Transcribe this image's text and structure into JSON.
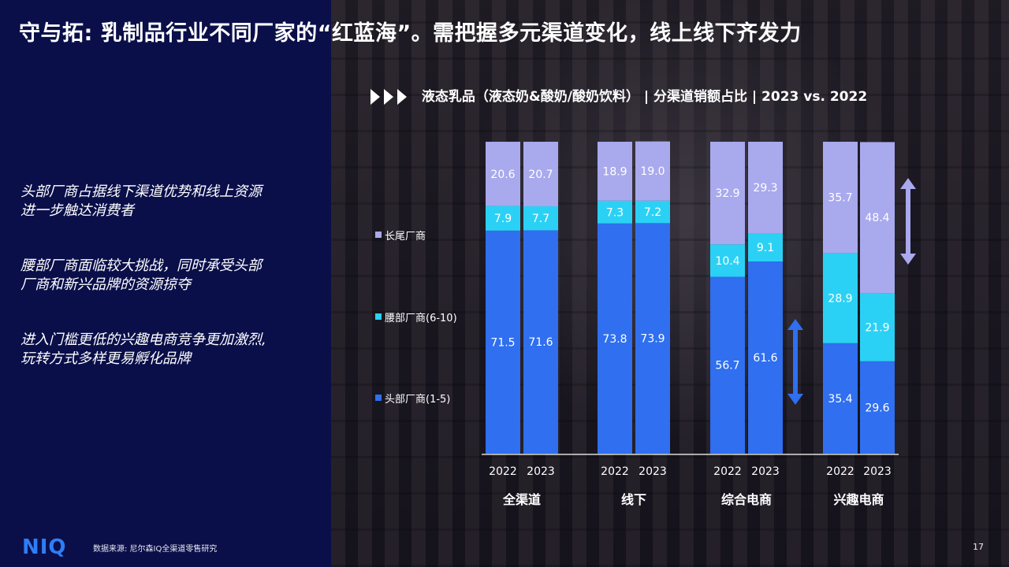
{
  "slide": {
    "title": "守与拓: 乳制品行业不同厂家的“红蓝海”。需把握多元渠道变化，线上线下齐发力",
    "points": [
      "头部厂商占据线下渠道优势和线上资源\n进一步触达消费者",
      "腰部厂商面临较大挑战，同时承受头部\n厂商和新兴品牌的资源掠夺",
      "进入门槛更低的兴趣电商竞争更加激烈,\n玩转方式多样更易孵化品牌"
    ],
    "logo": "NIQ",
    "source": "数据来源: 尼尔森IQ全渠道零售研究",
    "page_number": "17",
    "subtitle": "液态乳品（液态奶&酸奶/酸奶饮料） | 分渠道销额占比 | 2023 vs. 2022"
  },
  "colors": {
    "left_panel": "#0a0f4a",
    "head": "#2f6ff0",
    "mid": "#2bd1f5",
    "tail": "#a9a9ee",
    "arrow_blue": "#2f6ff0",
    "arrow_lilac": "#a9a9ee",
    "logo": "#2f7df5"
  },
  "chart_data": {
    "type": "bar",
    "stacked": true,
    "percent_stacked": true,
    "groups": [
      "全渠道",
      "线下",
      "综合电商",
      "兴趣电商"
    ],
    "years": [
      "2022",
      "2023"
    ],
    "series": [
      {
        "name": "头部厂商(1-5)",
        "color": "#2f6ff0",
        "values": [
          [
            71.5,
            71.6
          ],
          [
            73.8,
            73.9
          ],
          [
            56.7,
            61.6
          ],
          [
            35.4,
            29.6
          ]
        ]
      },
      {
        "name": "腰部厂商(6-10)",
        "color": "#2bd1f5",
        "values": [
          [
            7.9,
            7.7
          ],
          [
            7.3,
            7.2
          ],
          [
            10.4,
            9.1
          ],
          [
            28.9,
            21.9
          ]
        ]
      },
      {
        "name": "长尾厂商",
        "color": "#a9a9ee",
        "values": [
          [
            20.6,
            20.7
          ],
          [
            18.9,
            19.0
          ],
          [
            32.9,
            29.3
          ],
          [
            35.7,
            48.4
          ]
        ]
      }
    ],
    "legend_order": [
      "长尾厂商",
      "腰部厂商(6-10)",
      "头部厂商(1-5)"
    ],
    "legend_position": "left",
    "ylim": [
      0,
      100
    ],
    "grid": false,
    "annotations": [
      {
        "type": "double-arrow",
        "group": "综合电商",
        "color": "#2f6ff0"
      },
      {
        "type": "double-arrow",
        "group": "兴趣电商",
        "color": "#a9a9ee"
      }
    ]
  }
}
